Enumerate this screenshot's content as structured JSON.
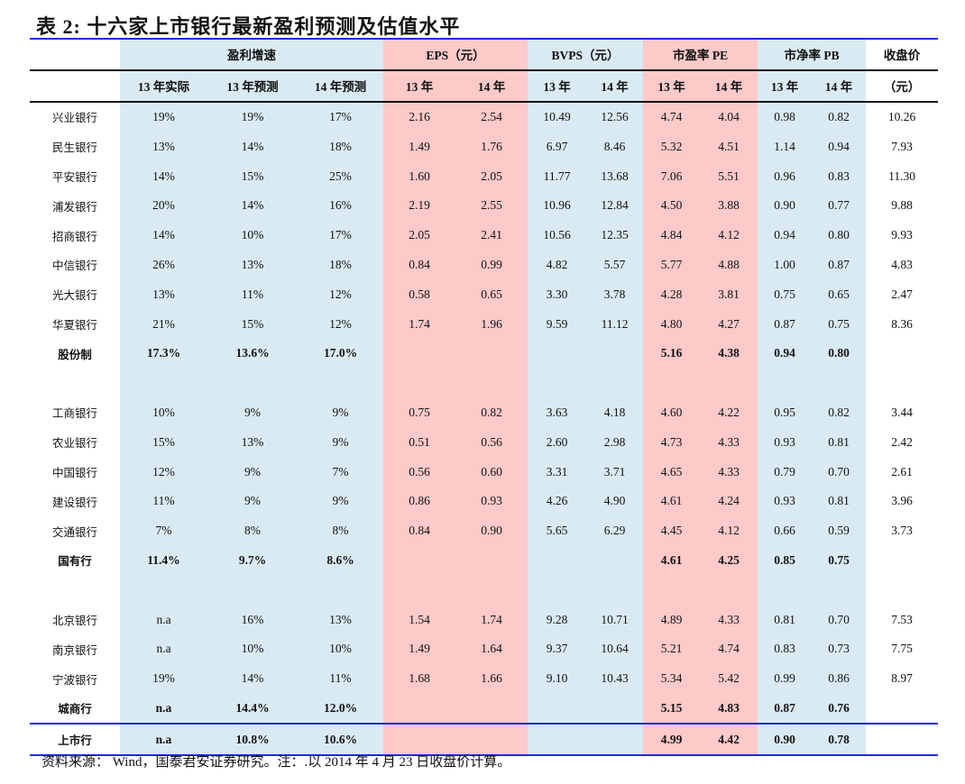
{
  "title": "表 2:  十六家上市银行最新盈利预测及估值水平",
  "header_groups": [
    "盈利增速",
    "EPS（元）",
    "BVPS（元）",
    "市盈率 PE",
    "市净率 PB",
    "收盘价"
  ],
  "sub_headers": [
    "13 年实际",
    "13 年预测",
    "14 年预测",
    "13 年",
    "14 年",
    "13 年",
    "14 年",
    "13 年",
    "14 年",
    "13 年",
    "14 年",
    "（元）"
  ],
  "colors": {
    "blue_band": "#daeaf3",
    "pink_band": "#fdc9c9",
    "rule": "#1a2be0"
  },
  "rows": [
    [
      "兴业银行",
      "19%",
      "19%",
      "17%",
      "2.16",
      "2.54",
      "10.49",
      "12.56",
      "4.74",
      "4.04",
      "0.98",
      "0.82",
      "10.26"
    ],
    [
      "民生银行",
      "13%",
      "14%",
      "18%",
      "1.49",
      "1.76",
      "6.97",
      "8.46",
      "5.32",
      "4.51",
      "1.14",
      "0.94",
      "7.93"
    ],
    [
      "平安银行",
      "14%",
      "15%",
      "25%",
      "1.60",
      "2.05",
      "11.77",
      "13.68",
      "7.06",
      "5.51",
      "0.96",
      "0.83",
      "11.30"
    ],
    [
      "浦发银行",
      "20%",
      "14%",
      "16%",
      "2.19",
      "2.55",
      "10.96",
      "12.84",
      "4.50",
      "3.88",
      "0.90",
      "0.77",
      "9.88"
    ],
    [
      "招商银行",
      "14%",
      "10%",
      "17%",
      "2.05",
      "2.41",
      "10.56",
      "12.35",
      "4.84",
      "4.12",
      "0.94",
      "0.80",
      "9.93"
    ],
    [
      "中信银行",
      "26%",
      "13%",
      "18%",
      "0.84",
      "0.99",
      "4.82",
      "5.57",
      "5.77",
      "4.88",
      "1.00",
      "0.87",
      "4.83"
    ],
    [
      "光大银行",
      "13%",
      "11%",
      "12%",
      "0.58",
      "0.65",
      "3.30",
      "3.78",
      "4.28",
      "3.81",
      "0.75",
      "0.65",
      "2.47"
    ],
    [
      "华夏银行",
      "21%",
      "15%",
      "12%",
      "1.74",
      "1.96",
      "9.59",
      "11.12",
      "4.80",
      "4.27",
      "0.87",
      "0.75",
      "8.36"
    ],
    [
      "股份制",
      "17.3%",
      "13.6%",
      "17.0%",
      "",
      "",
      "",
      "",
      "5.16",
      "4.38",
      "0.94",
      "0.80",
      ""
    ],
    [
      "",
      "",
      "",
      "",
      "",
      "",
      "",
      "",
      "",
      "",
      "",
      "",
      ""
    ],
    [
      "工商银行",
      "10%",
      "9%",
      "9%",
      "0.75",
      "0.82",
      "3.63",
      "4.18",
      "4.60",
      "4.22",
      "0.95",
      "0.82",
      "3.44"
    ],
    [
      "农业银行",
      "15%",
      "13%",
      "9%",
      "0.51",
      "0.56",
      "2.60",
      "2.98",
      "4.73",
      "4.33",
      "0.93",
      "0.81",
      "2.42"
    ],
    [
      "中国银行",
      "12%",
      "9%",
      "7%",
      "0.56",
      "0.60",
      "3.31",
      "3.71",
      "4.65",
      "4.33",
      "0.79",
      "0.70",
      "2.61"
    ],
    [
      "建设银行",
      "11%",
      "9%",
      "9%",
      "0.86",
      "0.93",
      "4.26",
      "4.90",
      "4.61",
      "4.24",
      "0.93",
      "0.81",
      "3.96"
    ],
    [
      "交通银行",
      "7%",
      "8%",
      "8%",
      "0.84",
      "0.90",
      "5.65",
      "6.29",
      "4.45",
      "4.12",
      "0.66",
      "0.59",
      "3.73"
    ],
    [
      "国有行",
      "11.4%",
      "9.7%",
      "8.6%",
      "",
      "",
      "",
      "",
      "4.61",
      "4.25",
      "0.85",
      "0.75",
      ""
    ],
    [
      "",
      "",
      "",
      "",
      "",
      "",
      "",
      "",
      "",
      "",
      "",
      "",
      ""
    ],
    [
      "北京银行",
      "n.a",
      "16%",
      "13%",
      "1.54",
      "1.74",
      "9.28",
      "10.71",
      "4.89",
      "4.33",
      "0.81",
      "0.70",
      "7.53"
    ],
    [
      "南京银行",
      "n.a",
      "10%",
      "10%",
      "1.49",
      "1.64",
      "9.37",
      "10.64",
      "5.21",
      "4.74",
      "0.83",
      "0.73",
      "7.75"
    ],
    [
      "宁波银行",
      "19%",
      "14%",
      "11%",
      "1.68",
      "1.66",
      "9.10",
      "10.43",
      "5.34",
      "5.42",
      "0.99",
      "0.86",
      "8.97"
    ],
    [
      "城商行",
      "n.a",
      "14.4%",
      "12.0%",
      "",
      "",
      "",
      "",
      "5.15",
      "4.83",
      "0.87",
      "0.76",
      ""
    ],
    [
      "上市行",
      "n.a",
      "10.8%",
      "10.6%",
      "",
      "",
      "",
      "",
      "4.99",
      "4.42",
      "0.90",
      "0.78",
      ""
    ]
  ],
  "bold_rows": [
    8,
    15,
    20,
    21
  ],
  "note": "资料来源：   Wind，国泰君安证券研究。注：.以 2014 年 4 月 23 日收盘价计算。"
}
